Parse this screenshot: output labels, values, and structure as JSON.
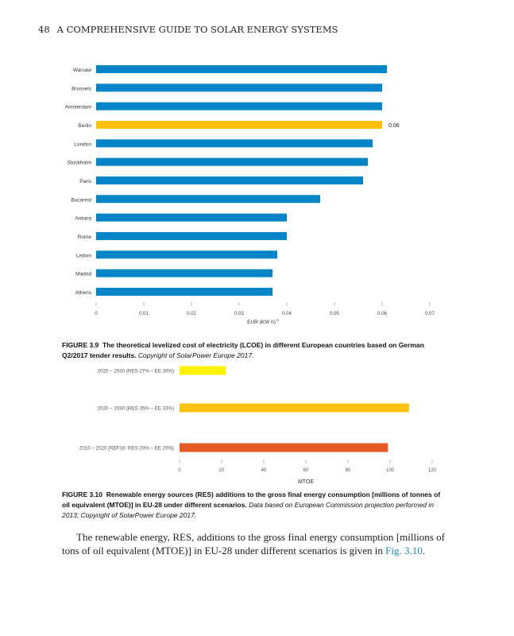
{
  "header": {
    "page_number": "48",
    "running_title": "A COMPREHENSIVE GUIDE TO SOLAR ENERGY SYSTEMS"
  },
  "chart_data": [
    {
      "type": "bar",
      "orientation": "horizontal",
      "categories": [
        "Warsaw",
        "Brussels",
        "Amsterdam",
        "Berlin",
        "London",
        "Stockholm",
        "Paris",
        "Bucarest",
        "Ankara",
        "Rome",
        "Lisbon",
        "Madrid",
        "Athens"
      ],
      "values": [
        0.061,
        0.06,
        0.06,
        0.06,
        0.058,
        0.057,
        0.056,
        0.047,
        0.04,
        0.04,
        0.038,
        0.037,
        0.037
      ],
      "highlight": {
        "category": "Berlin",
        "label": "0.06",
        "color": "#ffc20e"
      },
      "bar_color": "#0085c8",
      "xlabel": "EUR (KW h)",
      "xlabel_superscript": "-1",
      "xlim": [
        0,
        0.07
      ],
      "xticks": [
        "0",
        "0.01",
        "0.02",
        "0.03",
        "0.04",
        "0.05",
        "0.06",
        "0.07"
      ],
      "grid": false
    },
    {
      "type": "bar",
      "orientation": "horizontal",
      "categories": [
        "2020 – 2030 (RES 27% – EE 30%)",
        "2020 – 2030 (RES 35% – EE 33%)",
        "2010 – 2020 (REF16: RES 20% – EE 20%)"
      ],
      "values": [
        22,
        109,
        99
      ],
      "colors": [
        "#fff200",
        "#ffc20e",
        "#e35a25"
      ],
      "xlabel": "MTOE",
      "xlim": [
        0,
        120
      ],
      "xticks": [
        "0",
        "20",
        "40",
        "60",
        "80",
        "100",
        "120"
      ],
      "grid": false
    }
  ],
  "captions": {
    "fig39": {
      "label": "FIGURE 3.9",
      "text": "The theoretical levelized cost of electricity (LCOE) in different European countries based on German Q2/2017 tender results.",
      "credit": "Copyright of SolarPower Europe 2017."
    },
    "fig310": {
      "label": "FIGURE 3.10",
      "text": "Renewable energy sources (RES) additions to the gross final energy consumption [millions of tonnes of oil equivalent (MTOE)] in EU-28 under different scenarios.",
      "credit": "Data based on European Commission projection performed in 2013; Copyright of SolarPower Europe 2017."
    }
  },
  "body": {
    "text": "The renewable energy, RES, additions to the gross final energy consumption [millions of tons of oil equivalent (MTOE)] in EU-28 under different scenarios is given in ",
    "link": "Fig. 3.10",
    "end": "."
  }
}
